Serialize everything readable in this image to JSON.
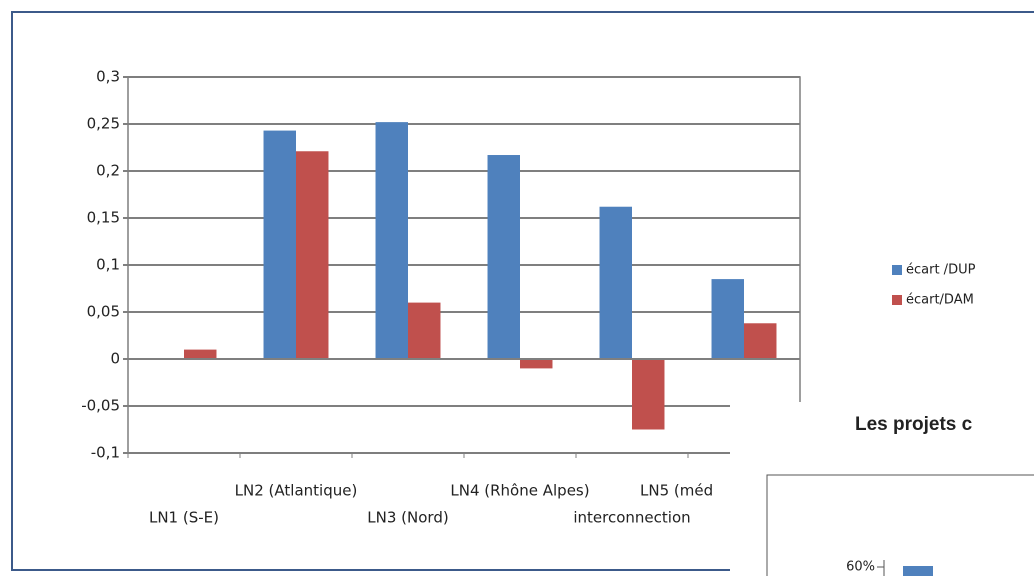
{
  "chart_data": [
    {
      "type": "bar",
      "categories": [
        "LN1 (S-E)",
        "LN2 (Atlantique)",
        "LN3 (Nord)",
        "LN4 (Rhône Alpes)",
        "interconnection",
        "LN5 (méd"
      ],
      "series": [
        {
          "name": "écart /DUP",
          "color": "#4f81bd",
          "values": [
            null,
            0.243,
            0.252,
            0.217,
            0.162,
            0.085
          ]
        },
        {
          "name": "écart/DAM",
          "color": "#c0504d",
          "values": [
            0.01,
            0.221,
            0.06,
            -0.01,
            -0.075,
            0.038
          ]
        }
      ],
      "ylim": [
        -0.1,
        0.3
      ],
      "yticks": [
        {
          "value": -0.1,
          "label": "-0,1"
        },
        {
          "value": -0.05,
          "label": "-0,05"
        },
        0,
        {
          "value": 0.05,
          "label": "0,05"
        },
        {
          "value": 0.1,
          "label": "0,1"
        },
        {
          "value": 0.15,
          "label": "0,15"
        },
        {
          "value": 0.2,
          "label": "0,2"
        },
        {
          "value": 0.25,
          "label": "0,25"
        },
        {
          "value": 0.3,
          "label": "0,3"
        }
      ],
      "grid": true
    },
    {
      "type": "bar",
      "title": "Les projets c",
      "yticks": [
        {
          "value": 60,
          "label": "60%"
        }
      ]
    }
  ]
}
